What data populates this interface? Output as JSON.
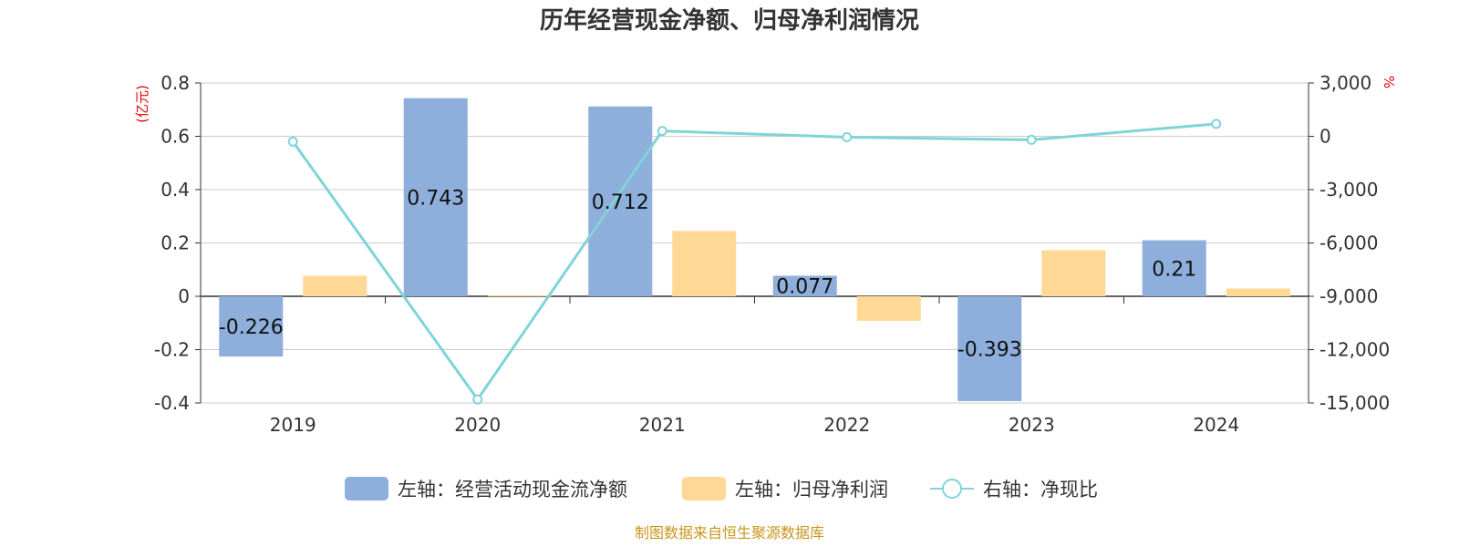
{
  "chart_data": {
    "type": "bar",
    "title": "历年经营现金净额、归母净利润情况",
    "categories": [
      "2019",
      "2020",
      "2021",
      "2022",
      "2023",
      "2024"
    ],
    "series": [
      {
        "name": "左轴：经营活动现金流净额",
        "axis": "left",
        "type": "bar",
        "color": "#8eaedb",
        "values": [
          -0.226,
          0.743,
          0.712,
          0.077,
          -0.393,
          0.21
        ],
        "labels": [
          "-0.226",
          "0.743",
          "0.712",
          "0.077",
          "-0.393",
          "0.21"
        ]
      },
      {
        "name": "左轴：归母净利润",
        "axis": "left",
        "type": "bar",
        "color": "#ffd896",
        "values": [
          0.077,
          0.003,
          0.245,
          -0.092,
          0.173,
          0.029
        ]
      },
      {
        "name": "右轴：净现比",
        "axis": "right",
        "type": "line",
        "color": "#80d4d8",
        "values": [
          -300,
          -14800,
          300,
          -50,
          -200,
          700
        ]
      }
    ],
    "left_axis": {
      "unit": "(亿元)",
      "ylim": [
        -0.4,
        0.8
      ],
      "ticks": [
        0.8,
        0.6,
        0.4,
        0.2,
        0,
        -0.2,
        -0.4
      ],
      "tick_labels": [
        "0.8",
        "0.6",
        "0.4",
        "0.2",
        "0",
        "-0.2",
        "-0.4"
      ]
    },
    "right_axis": {
      "unit": "%",
      "ylim": [
        -15000,
        3000
      ],
      "ticks": [
        3000,
        0,
        -3000,
        -6000,
        -9000,
        -12000,
        -15000
      ],
      "tick_labels": [
        "3,000",
        "0",
        "-3,000",
        "-6,000",
        "-9,000",
        "-12,000",
        "-15,000"
      ]
    },
    "grid": true,
    "legend_position": "bottom"
  },
  "source": "制图数据来自恒生聚源数据库"
}
